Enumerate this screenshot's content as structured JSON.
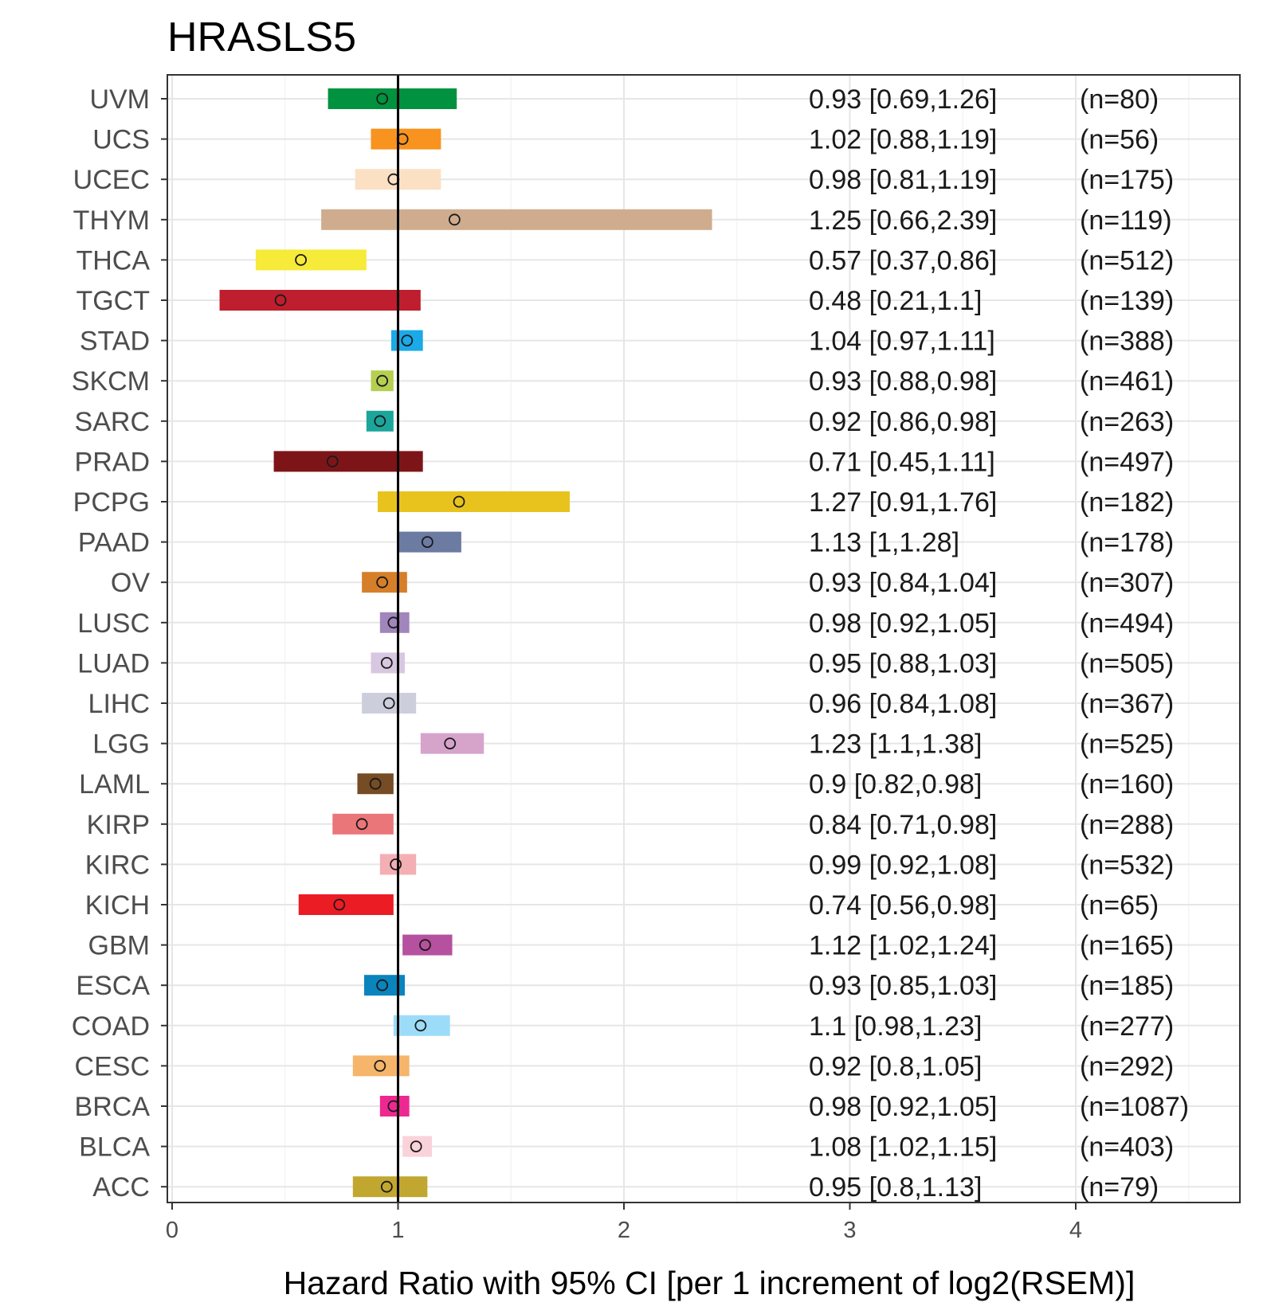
{
  "chart_data": {
    "type": "forest",
    "title": "HRASLS5",
    "xlabel": "Hazard Ratio with 95% CI [per 1 increment of log2(RSEM)]",
    "ylabel": "",
    "xlim": [
      0,
      4.7
    ],
    "x_ticks": [
      0,
      1,
      2,
      3,
      4
    ],
    "reference_line": 1,
    "grid": true,
    "rows": [
      {
        "category": "UVM",
        "hr": 0.93,
        "lower": 0.69,
        "upper": 1.26,
        "label": "0.93 [0.69,1.26]",
        "n": "(n=80)",
        "color": "#00923F"
      },
      {
        "category": "UCS",
        "hr": 1.02,
        "lower": 0.88,
        "upper": 1.19,
        "label": "1.02 [0.88,1.19]",
        "n": "(n=56)",
        "color": "#F7931E"
      },
      {
        "category": "UCEC",
        "hr": 0.98,
        "lower": 0.81,
        "upper": 1.19,
        "label": "0.98 [0.81,1.19]",
        "n": "(n=175)",
        "color": "#FBE0C3"
      },
      {
        "category": "THYM",
        "hr": 1.25,
        "lower": 0.66,
        "upper": 2.39,
        "label": "1.25 [0.66,2.39]",
        "n": "(n=119)",
        "color": "#CFAC8E"
      },
      {
        "category": "THCA",
        "hr": 0.57,
        "lower": 0.37,
        "upper": 0.86,
        "label": "0.57 [0.37,0.86]",
        "n": "(n=512)",
        "color": "#F5EB38"
      },
      {
        "category": "TGCT",
        "hr": 0.48,
        "lower": 0.21,
        "upper": 1.1,
        "label": "0.48 [0.21,1.1]",
        "n": "(n=139)",
        "color": "#BE1E2D"
      },
      {
        "category": "STAD",
        "hr": 1.04,
        "lower": 0.97,
        "upper": 1.11,
        "label": "1.04 [0.97,1.11]",
        "n": "(n=388)",
        "color": "#1BA9E8"
      },
      {
        "category": "SKCM",
        "hr": 0.93,
        "lower": 0.88,
        "upper": 0.98,
        "label": "0.93 [0.88,0.98]",
        "n": "(n=461)",
        "color": "#B5CF51"
      },
      {
        "category": "SARC",
        "hr": 0.92,
        "lower": 0.86,
        "upper": 0.98,
        "label": "0.92 [0.86,0.98]",
        "n": "(n=263)",
        "color": "#1CA59B"
      },
      {
        "category": "PRAD",
        "hr": 0.71,
        "lower": 0.45,
        "upper": 1.11,
        "label": "0.71 [0.45,1.11]",
        "n": "(n=497)",
        "color": "#7D1518"
      },
      {
        "category": "PCPG",
        "hr": 1.27,
        "lower": 0.91,
        "upper": 1.76,
        "label": "1.27 [0.91,1.76]",
        "n": "(n=182)",
        "color": "#E8C31D"
      },
      {
        "category": "PAAD",
        "hr": 1.13,
        "lower": 1,
        "upper": 1.28,
        "label": "1.13 [1,1.28]",
        "n": "(n=178)",
        "color": "#6B7BA1"
      },
      {
        "category": "OV",
        "hr": 0.93,
        "lower": 0.84,
        "upper": 1.04,
        "label": "0.93 [0.84,1.04]",
        "n": "(n=307)",
        "color": "#D67F29"
      },
      {
        "category": "LUSC",
        "hr": 0.98,
        "lower": 0.92,
        "upper": 1.05,
        "label": "0.98 [0.92,1.05]",
        "n": "(n=494)",
        "color": "#A086BB"
      },
      {
        "category": "LUAD",
        "hr": 0.95,
        "lower": 0.88,
        "upper": 1.03,
        "label": "0.95 [0.88,1.03]",
        "n": "(n=505)",
        "color": "#D8C7E0"
      },
      {
        "category": "LIHC",
        "hr": 0.96,
        "lower": 0.84,
        "upper": 1.08,
        "label": "0.96 [0.84,1.08]",
        "n": "(n=367)",
        "color": "#CCCEDC"
      },
      {
        "category": "LGG",
        "hr": 1.23,
        "lower": 1.1,
        "upper": 1.38,
        "label": "1.23 [1.1,1.38]",
        "n": "(n=525)",
        "color": "#D6A3CB"
      },
      {
        "category": "LAML",
        "hr": 0.9,
        "lower": 0.82,
        "upper": 0.98,
        "label": "0.9 [0.82,0.98]",
        "n": "(n=160)",
        "color": "#754C24"
      },
      {
        "category": "KIRP",
        "hr": 0.84,
        "lower": 0.71,
        "upper": 0.98,
        "label": "0.84 [0.71,0.98]",
        "n": "(n=288)",
        "color": "#EB7679"
      },
      {
        "category": "KIRC",
        "hr": 0.99,
        "lower": 0.92,
        "upper": 1.08,
        "label": "0.99 [0.92,1.08]",
        "n": "(n=532)",
        "color": "#F4AFB4"
      },
      {
        "category": "KICH",
        "hr": 0.74,
        "lower": 0.56,
        "upper": 0.98,
        "label": "0.74 [0.56,0.98]",
        "n": "(n=65)",
        "color": "#EC1C24"
      },
      {
        "category": "GBM",
        "hr": 1.12,
        "lower": 1.02,
        "upper": 1.24,
        "label": "1.12 [1.02,1.24]",
        "n": "(n=165)",
        "color": "#B5519E"
      },
      {
        "category": "ESCA",
        "hr": 0.93,
        "lower": 0.85,
        "upper": 1.03,
        "label": "0.93 [0.85,1.03]",
        "n": "(n=185)",
        "color": "#0A84BD"
      },
      {
        "category": "COAD",
        "hr": 1.1,
        "lower": 0.98,
        "upper": 1.23,
        "label": "1.1 [0.98,1.23]",
        "n": "(n=277)",
        "color": "#9DDCF9"
      },
      {
        "category": "CESC",
        "hr": 0.92,
        "lower": 0.8,
        "upper": 1.05,
        "label": "0.92 [0.8,1.05]",
        "n": "(n=292)",
        "color": "#F5B56A"
      },
      {
        "category": "BRCA",
        "hr": 0.98,
        "lower": 0.92,
        "upper": 1.05,
        "label": "0.98 [0.92,1.05]",
        "n": "(n=1087)",
        "color": "#ED2891"
      },
      {
        "category": "BLCA",
        "hr": 1.08,
        "lower": 1.02,
        "upper": 1.15,
        "label": "1.08 [1.02,1.15]",
        "n": "(n=403)",
        "color": "#FAD2D9"
      },
      {
        "category": "ACC",
        "hr": 0.95,
        "lower": 0.8,
        "upper": 1.13,
        "label": "0.95 [0.8,1.13]",
        "n": "(n=79)",
        "color": "#C1A72F"
      }
    ]
  }
}
